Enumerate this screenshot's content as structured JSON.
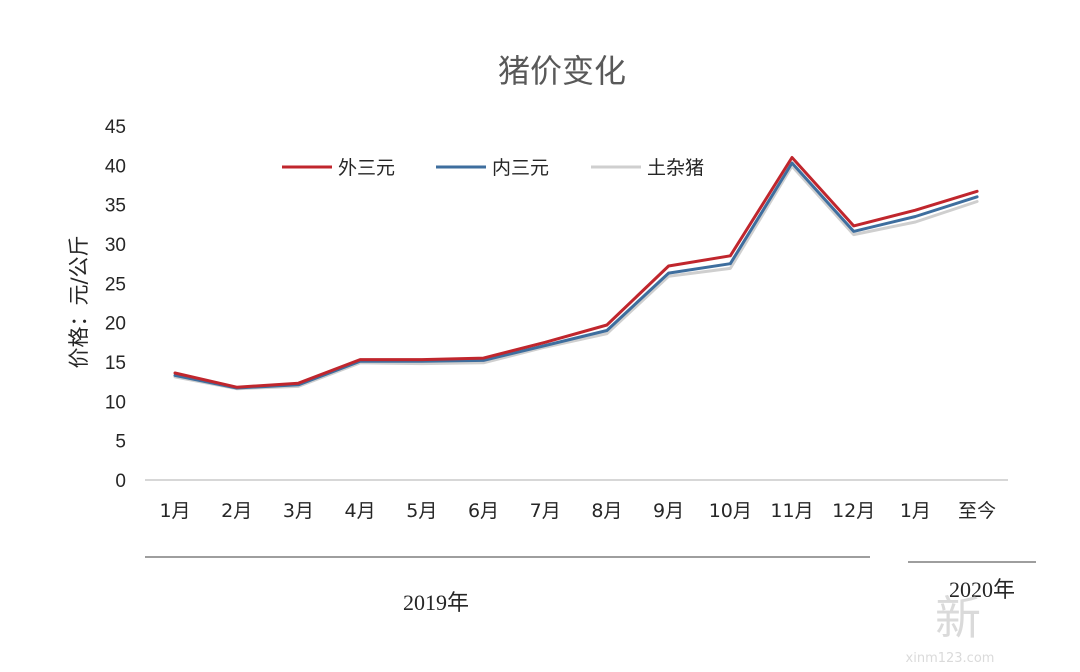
{
  "chart_data": {
    "type": "line",
    "title": "猪价变化",
    "ylabel": "价格：元/公斤",
    "xlabel": "",
    "ylim": [
      0,
      45
    ],
    "yticks": [
      0,
      5,
      10,
      15,
      20,
      25,
      30,
      35,
      40,
      45
    ],
    "grid": false,
    "legend_position": "top-center",
    "categories": [
      "1月",
      "2月",
      "3月",
      "4月",
      "5月",
      "6月",
      "7月",
      "8月",
      "9月",
      "10月",
      "11月",
      "12月",
      "1月",
      "至今"
    ],
    "year_groups": [
      {
        "label": "2019年",
        "start": 0,
        "end": 11
      },
      {
        "label": "2020年",
        "start": 12,
        "end": 13
      }
    ],
    "series": [
      {
        "name": "外三元",
        "color": "#c0262d",
        "values": [
          13.6,
          11.8,
          12.3,
          15.3,
          15.3,
          15.5,
          17.5,
          19.7,
          27.2,
          28.5,
          41.0,
          32.3,
          34.3,
          36.7
        ]
      },
      {
        "name": "内三元",
        "color": "#3e6e9e",
        "values": [
          13.3,
          11.7,
          12.1,
          15.1,
          15.1,
          15.2,
          17.1,
          19.0,
          26.3,
          27.5,
          40.3,
          31.6,
          33.5,
          36.0
        ]
      },
      {
        "name": "土杂猪",
        "color": "#cfcfcf",
        "values": [
          13.1,
          11.6,
          11.9,
          14.9,
          14.8,
          14.9,
          16.9,
          18.6,
          25.9,
          26.9,
          39.9,
          31.2,
          32.8,
          35.4
        ]
      }
    ]
  },
  "watermark": {
    "glyphs": "新",
    "text": "xinm123.com"
  }
}
